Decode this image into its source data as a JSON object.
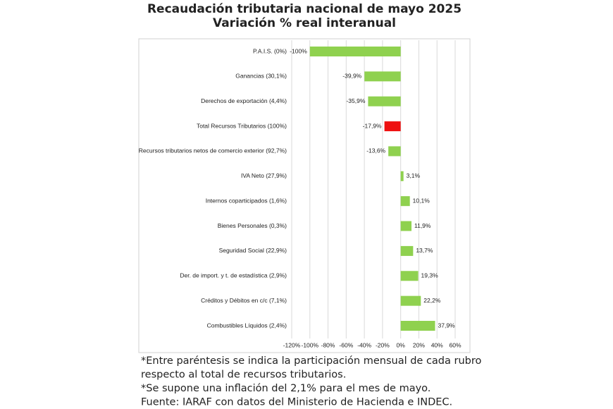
{
  "chart_data": {
    "type": "bar",
    "orientation": "horizontal",
    "title": "Recaudación tributaria nacional de mayo 2025",
    "subtitle": "Variación % real interanual",
    "categories": [
      "P.A.I.S. (0%)",
      "Ganancias (30,1%)",
      "Derechos de exportación (4,4%)",
      "Total Recursos Tributarios (100%)",
      "Recursos tributarios netos de comercio exterior (92,7%)",
      "IVA Neto (27,9%)",
      "Internos coparticipados (1,6%)",
      "Bienes Personales (0,3%)",
      "Seguridad Social (22,9%)",
      "Der. de import. y t. de estadística (2,9%)",
      "Créditos y Débitos en c/c (7,1%)",
      "Combustibles Líquidos (2,4%)"
    ],
    "values": [
      -100,
      -39.9,
      -35.9,
      -17.9,
      -13.6,
      3.1,
      10.1,
      11.9,
      13.7,
      19.3,
      22.2,
      37.9
    ],
    "value_labels": [
      "-100%",
      "-39,9%",
      "-35,9%",
      "-17,9%",
      "-13,6%",
      "3,1%",
      "10,1%",
      "11,9%",
      "13,7%",
      "19,3%",
      "22,2%",
      "37,9%"
    ],
    "colors": [
      "#8fd14f",
      "#8fd14f",
      "#8fd14f",
      "#ee1111",
      "#8fd14f",
      "#8fd14f",
      "#8fd14f",
      "#8fd14f",
      "#8fd14f",
      "#8fd14f",
      "#8fd14f",
      "#8fd14f"
    ],
    "xlim": [
      -120,
      60
    ],
    "xticks": [
      {
        "value": -120,
        "label": "-120%"
      },
      {
        "value": -100,
        "label": "-100%"
      },
      {
        "value": -80,
        "label": "-80%"
      },
      {
        "value": -60,
        "label": "-60%"
      },
      {
        "value": -40,
        "label": "-40%"
      },
      {
        "value": -20,
        "label": "-20%"
      },
      {
        "value": 0,
        "label": "0%"
      },
      {
        "value": 20,
        "label": "20%"
      },
      {
        "value": 40,
        "label": "40%"
      },
      {
        "value": 60,
        "label": "60%"
      }
    ],
    "grid": true,
    "notes": [
      "*Entre paréntesis se indica la participación mensual de cada rubro",
      " respecto al total de recursos tributarios.",
      "*Se supone una inflación del 2,1% para el mes de mayo.",
      "Fuente: IARAF con datos del Ministerio de Hacienda e INDEC."
    ]
  }
}
